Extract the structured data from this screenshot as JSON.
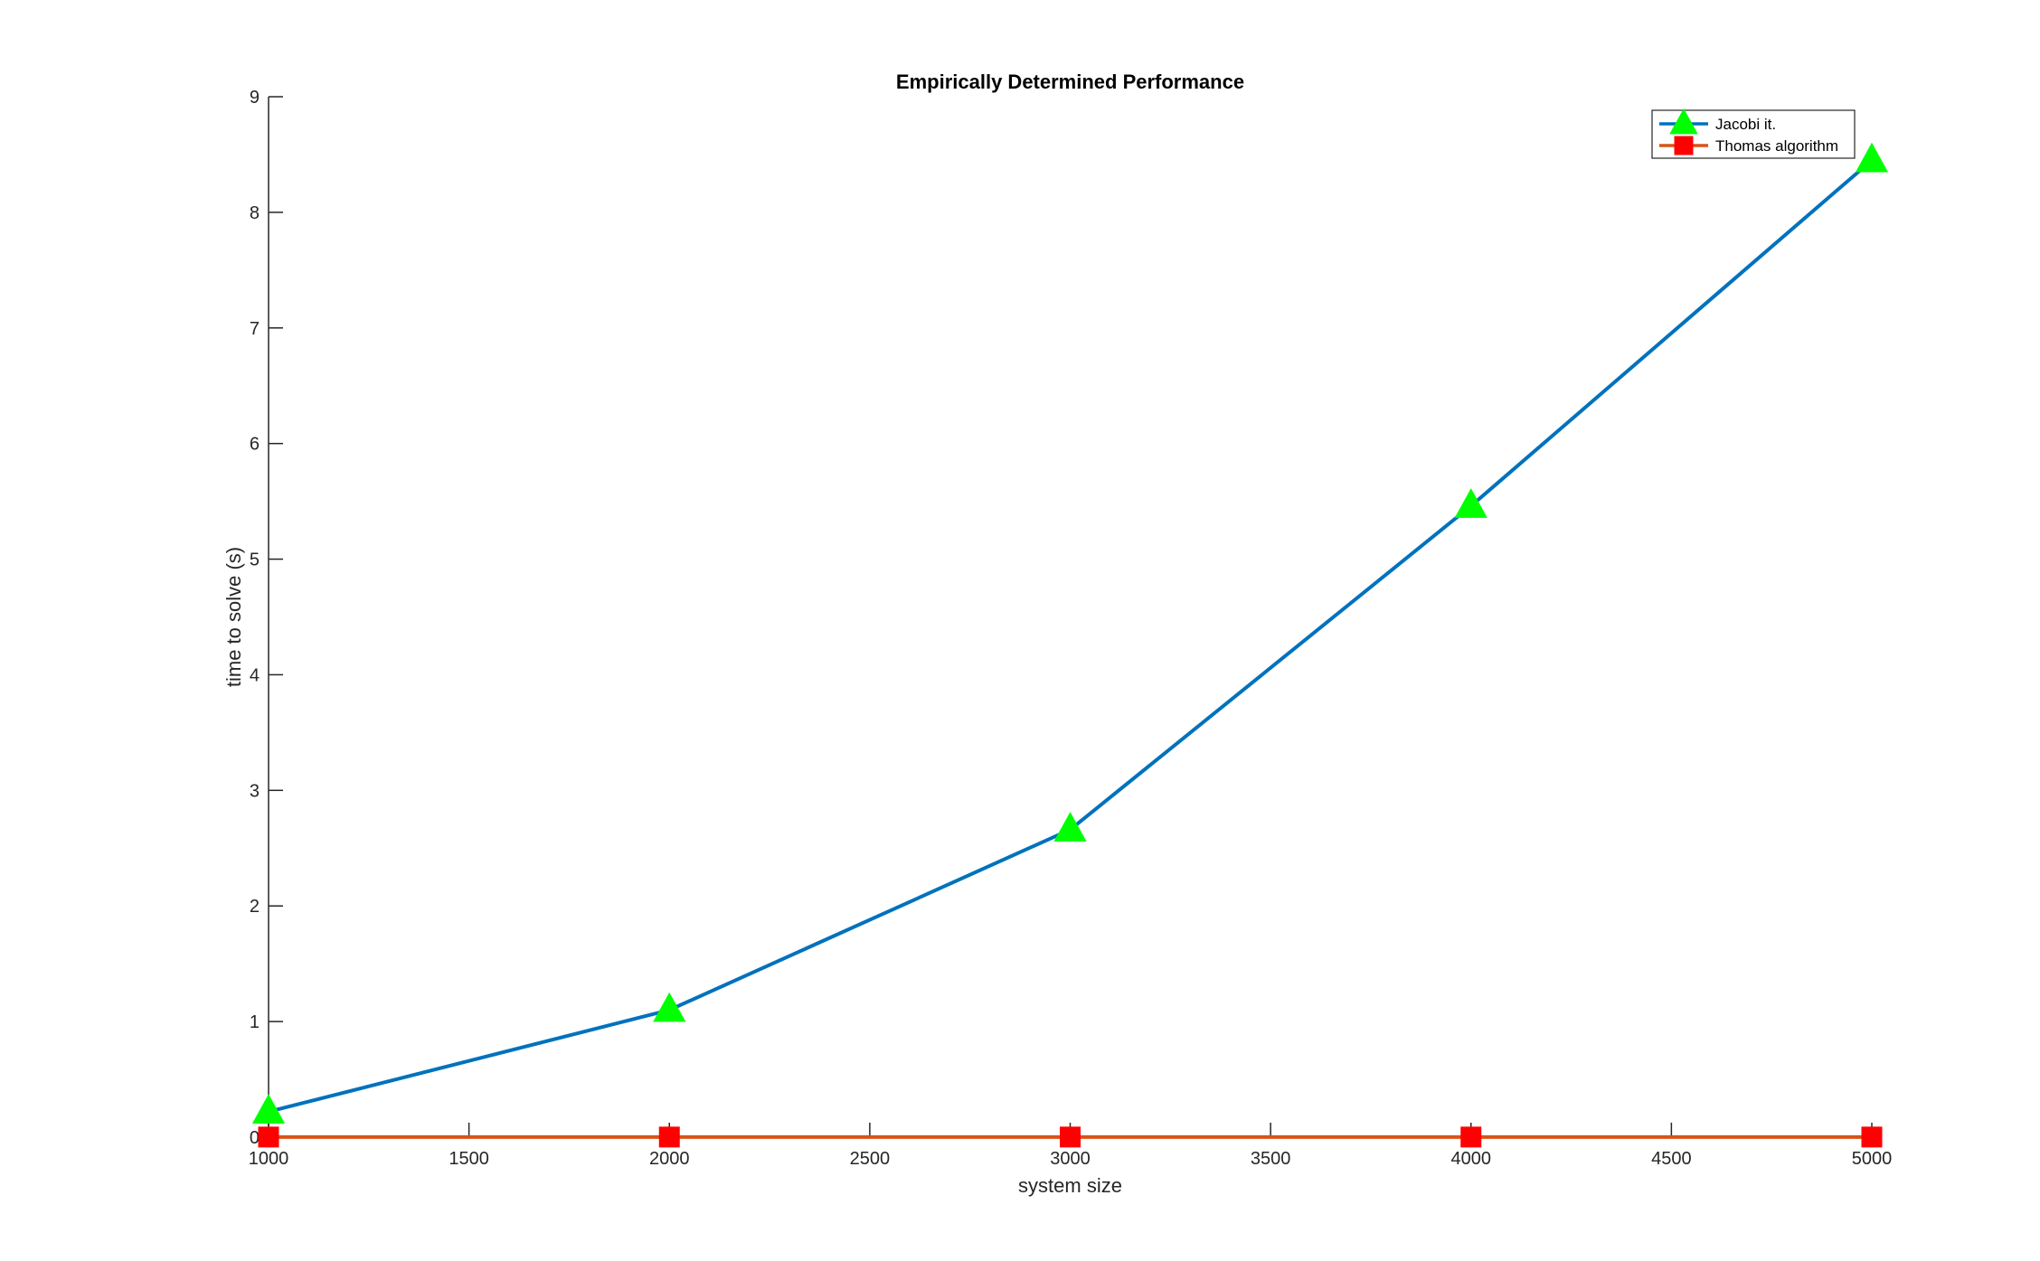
{
  "chart_data": {
    "type": "line",
    "title": "Empirically Determined Performance",
    "xlabel": "system size",
    "ylabel": "time to solve (s)",
    "xlim": [
      1000,
      5000
    ],
    "ylim": [
      0,
      9
    ],
    "x_ticks": [
      1000,
      1500,
      2000,
      2500,
      3000,
      3500,
      4000,
      4500,
      5000
    ],
    "y_ticks": [
      0,
      1,
      2,
      3,
      4,
      5,
      6,
      7,
      8,
      9
    ],
    "grid": false,
    "legend_position": "top-right",
    "x": [
      1000,
      2000,
      3000,
      4000,
      5000
    ],
    "series": [
      {
        "name": "Jacobi it.",
        "values": [
          0.22,
          1.1,
          2.66,
          5.46,
          8.45
        ],
        "line_color": "#0072BD",
        "marker": "triangle",
        "marker_color": "#00FF00"
      },
      {
        "name": "Thomas algorithm",
        "values": [
          0.001,
          0.001,
          0.001,
          0.001,
          0.001
        ],
        "line_color": "#D95319",
        "marker": "square",
        "marker_color": "#FF0000"
      }
    ]
  }
}
